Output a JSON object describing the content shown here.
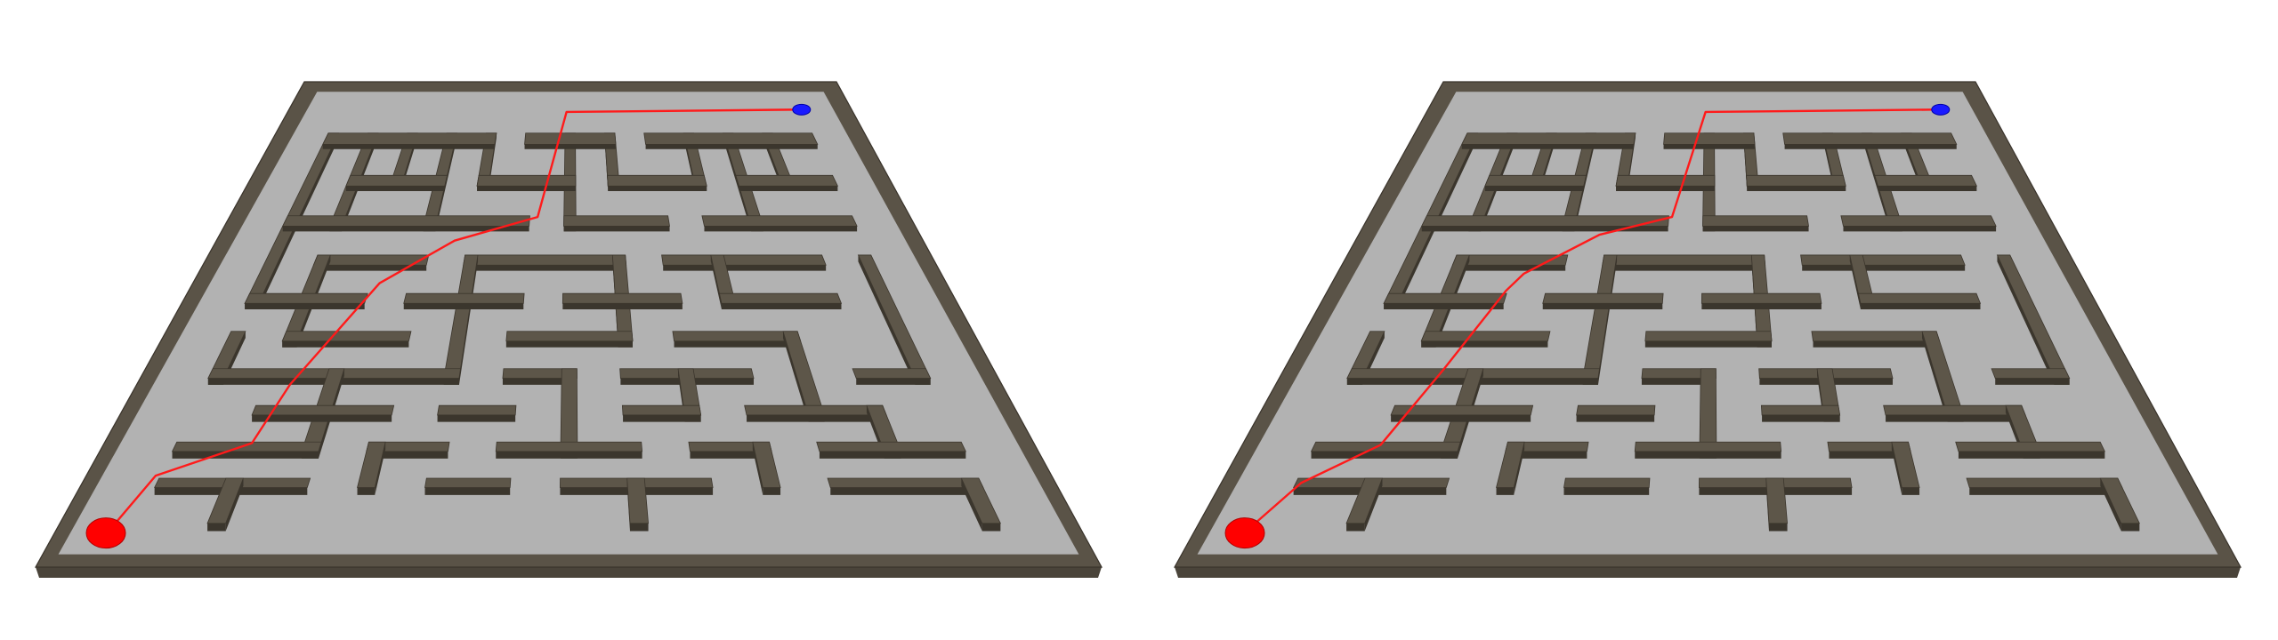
{
  "colors": {
    "background": "#ffffff",
    "floor": "#b2b2b2",
    "wall_top": "#5d5649",
    "wall_face": "#3b362d",
    "solution_path": "#ff1a1a",
    "start_marker": "#ff0000",
    "goal_marker": "#1a1aff"
  },
  "maze": {
    "cols": 14,
    "rows": 12,
    "walls": [
      [
        1,
        1,
        1,
        5
      ],
      [
        2,
        1,
        2,
        3
      ],
      [
        3,
        1,
        3,
        2
      ],
      [
        4,
        1,
        4,
        3
      ],
      [
        5,
        1,
        5,
        2
      ],
      [
        7,
        1,
        7,
        3
      ],
      [
        8,
        1,
        8,
        2
      ],
      [
        10,
        1,
        10,
        2
      ],
      [
        11,
        1,
        11,
        3
      ],
      [
        12,
        1,
        12,
        2
      ],
      [
        1,
        1,
        5,
        1
      ],
      [
        6,
        1,
        8,
        1
      ],
      [
        9,
        1,
        13,
        1
      ],
      [
        2,
        2,
        4,
        2
      ],
      [
        5,
        2,
        7,
        2
      ],
      [
        8,
        2,
        10,
        2
      ],
      [
        11,
        2,
        13,
        2
      ],
      [
        1,
        3,
        6,
        3
      ],
      [
        7,
        3,
        9,
        3
      ],
      [
        10,
        3,
        13,
        3
      ],
      [
        2,
        4,
        4,
        4
      ],
      [
        5,
        4,
        8,
        4
      ],
      [
        9,
        4,
        12,
        4
      ],
      [
        2,
        4,
        2,
        6
      ],
      [
        5,
        4,
        5,
        7
      ],
      [
        8,
        4,
        8,
        6
      ],
      [
        10,
        4,
        10,
        5
      ],
      [
        13,
        4,
        13,
        7
      ],
      [
        1,
        5,
        3,
        5
      ],
      [
        4,
        5,
        6,
        5
      ],
      [
        7,
        5,
        9,
        5
      ],
      [
        10,
        5,
        12,
        5
      ],
      [
        2,
        6,
        4,
        6
      ],
      [
        6,
        6,
        8,
        6
      ],
      [
        9,
        6,
        11,
        6
      ],
      [
        1,
        6,
        1,
        7
      ],
      [
        11,
        6,
        11,
        8
      ],
      [
        1,
        7,
        5,
        7
      ],
      [
        6,
        7,
        7,
        7
      ],
      [
        8,
        7,
        10,
        7
      ],
      [
        12,
        7,
        13,
        7
      ],
      [
        3,
        7,
        3,
        9
      ],
      [
        7,
        7,
        7,
        9
      ],
      [
        9,
        7,
        9,
        8
      ],
      [
        2,
        8,
        4,
        8
      ],
      [
        5,
        8,
        6,
        8
      ],
      [
        8,
        8,
        9,
        8
      ],
      [
        10,
        8,
        12,
        8
      ],
      [
        12,
        8,
        12,
        9
      ],
      [
        1,
        9,
        3,
        9
      ],
      [
        4,
        9,
        5,
        9
      ],
      [
        6,
        9,
        8,
        9
      ],
      [
        9,
        9,
        10,
        9
      ],
      [
        11,
        9,
        13,
        9
      ],
      [
        4,
        9,
        4,
        10
      ],
      [
        10,
        9,
        10,
        10
      ],
      [
        1,
        10,
        3,
        10
      ],
      [
        5,
        10,
        6,
        10
      ],
      [
        7,
        10,
        9,
        10
      ],
      [
        11,
        10,
        13,
        10
      ],
      [
        13,
        10,
        13,
        11
      ],
      [
        2,
        10,
        2,
        11
      ],
      [
        8,
        10,
        8,
        11
      ]
    ]
  },
  "solution_paths": [
    [
      [
        0.55,
        11.2
      ],
      [
        0.8,
        9.8
      ],
      [
        2.05,
        8.9
      ],
      [
        2.3,
        7.3
      ],
      [
        3.3,
        4.6
      ],
      [
        4.6,
        3.5
      ],
      [
        6.3,
        2.9
      ],
      [
        6.9,
        0.4
      ],
      [
        13.0,
        0.35
      ]
    ],
    [
      [
        0.55,
        11.2
      ],
      [
        0.95,
        10.0
      ],
      [
        1.9,
        8.95
      ],
      [
        2.45,
        6.9
      ],
      [
        3.1,
        4.8
      ],
      [
        3.35,
        4.35
      ],
      [
        4.7,
        3.35
      ],
      [
        6.2,
        2.9
      ],
      [
        6.9,
        0.4
      ],
      [
        13.0,
        0.35
      ]
    ]
  ],
  "start": {
    "col": 0.5,
    "row": 11.4
  },
  "goal": {
    "col": 13.15,
    "row": 0.35
  }
}
